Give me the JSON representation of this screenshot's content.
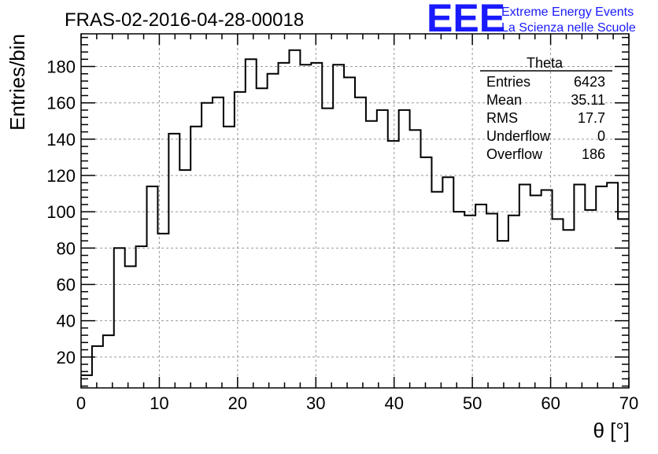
{
  "title": "FRAS-02-2016-04-28-00018",
  "logo": {
    "letters": "EEE",
    "line1": "Extreme Energy Events",
    "line2": "La Scienza nelle Scuole",
    "color": "#1a1aff"
  },
  "stats_box": {
    "name": "Theta",
    "rows": [
      {
        "label": "Entries",
        "value": "6423"
      },
      {
        "label": "Mean",
        "value": "35.11"
      },
      {
        "label": "RMS",
        "value": "17.7"
      },
      {
        "label": "Underflow",
        "value": "0"
      },
      {
        "label": "Overflow",
        "value": "186"
      }
    ]
  },
  "chart_data": {
    "type": "histogram",
    "xlabel": "θ [°]",
    "ylabel": "Entries/bin",
    "xlim": [
      0,
      70
    ],
    "ylim": [
      3,
      198
    ],
    "bin_width": 1.4,
    "grid": true,
    "line_color": "#000000",
    "x_ticks": [
      0,
      10,
      20,
      30,
      40,
      50,
      60,
      70
    ],
    "y_ticks": [
      20,
      40,
      60,
      80,
      100,
      120,
      140,
      160,
      180
    ],
    "bin_edges_start": 0,
    "values": [
      10,
      26,
      32,
      80,
      70,
      81,
      114,
      88,
      143,
      123,
      147,
      160,
      163,
      147,
      166,
      184,
      168,
      176,
      182,
      189,
      181,
      182,
      157,
      181,
      174,
      163,
      150,
      156,
      139,
      156,
      145,
      130,
      111,
      119,
      100,
      98,
      104,
      99,
      84,
      98,
      115,
      109,
      112,
      96,
      90,
      115,
      101,
      114,
      116,
      96
    ]
  }
}
